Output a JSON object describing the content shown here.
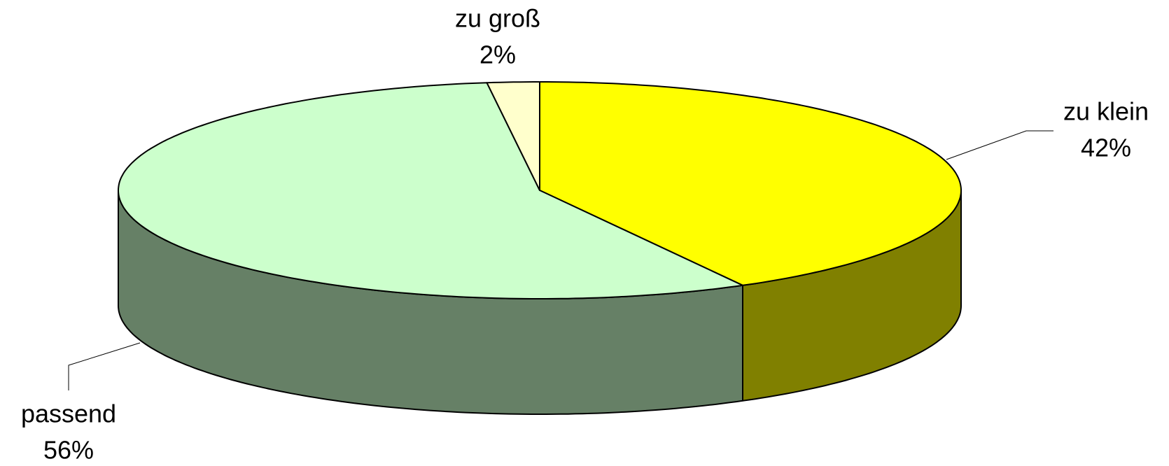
{
  "chart_data": {
    "type": "pie",
    "categories": [
      "zu klein",
      "passend",
      "zu groß"
    ],
    "values": [
      42,
      56,
      2
    ],
    "value_labels": [
      "42%",
      "56%",
      "2%"
    ],
    "colors": [
      "#ffff00",
      "#ccffcc",
      "#ffffcc"
    ],
    "side_colors": [
      "#808000",
      "#668066",
      "#808066"
    ]
  }
}
